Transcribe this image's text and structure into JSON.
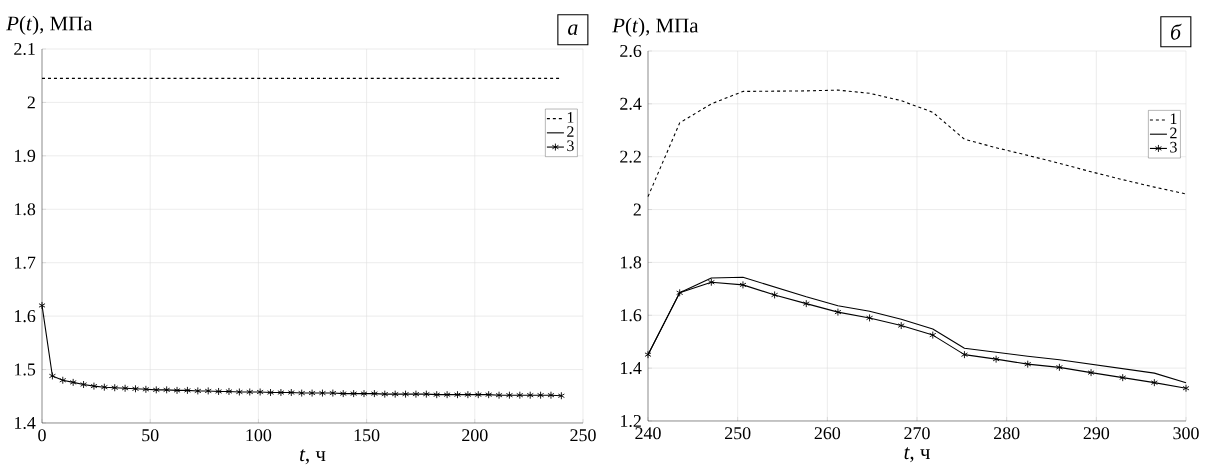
{
  "chart_data": [
    {
      "type": "line",
      "xlabel": "*t*, ч",
      "ylabel": "*P*(*t*), МПа",
      "annotations": [
        "*а*"
      ],
      "xlim": [
        0,
        250
      ],
      "ylim": [
        1.4,
        2.1
      ],
      "xticks": [
        0,
        50,
        100,
        150,
        200,
        250
      ],
      "yticks": [
        1.4,
        1.5,
        1.6,
        1.7,
        1.8,
        1.9,
        2,
        2.1
      ],
      "grid": true,
      "legend": "top right",
      "series": [
        {
          "name": "1",
          "color": "#000000",
          "line_style": "dashed",
          "marker": "none",
          "x": [
            0,
            240
          ],
          "values": [
            2.045,
            2.045
          ]
        },
        {
          "name": "2",
          "color": "#000000",
          "line_style": "solid",
          "marker": "none"
        },
        {
          "name": "3",
          "color": "#000000",
          "line_style": "solid",
          "marker": "cross",
          "x": [
            0,
            4.8,
            9.6,
            14.4,
            19.2,
            24,
            28.8,
            33.6,
            38.4,
            43.2,
            48,
            52.8,
            57.6,
            62.4,
            67.2,
            72,
            76.8,
            81.6,
            86.4,
            91.2,
            96,
            100.8,
            105.6,
            110.4,
            115.2,
            120,
            124.8,
            129.6,
            134.4,
            139.2,
            144,
            148.8,
            153.6,
            158.4,
            163.2,
            168,
            172.8,
            177.6,
            182.4,
            187.2,
            192,
            196.8,
            201.6,
            206.4,
            211.2,
            216,
            220.8,
            225.6,
            230.4,
            235.2,
            240
          ],
          "values": [
            1.62,
            1.488,
            1.48,
            1.476,
            1.472,
            1.469,
            1.467,
            1.466,
            1.465,
            1.464,
            1.463,
            1.462,
            1.462,
            1.461,
            1.461,
            1.46,
            1.46,
            1.459,
            1.459,
            1.458,
            1.458,
            1.458,
            1.457,
            1.457,
            1.457,
            1.456,
            1.456,
            1.456,
            1.456,
            1.455,
            1.455,
            1.455,
            1.455,
            1.454,
            1.454,
            1.454,
            1.454,
            1.454,
            1.453,
            1.453,
            1.453,
            1.453,
            1.453,
            1.453,
            1.452,
            1.452,
            1.452,
            1.452,
            1.452,
            1.452,
            1.451
          ]
        }
      ]
    },
    {
      "type": "line",
      "xlabel": "*t*, ч",
      "ylabel": "*P*(*t*), МПа",
      "annotations": [
        "*б*"
      ],
      "xlim": [
        240,
        300
      ],
      "ylim": [
        1.2,
        2.6
      ],
      "xticks": [
        240,
        250,
        260,
        270,
        280,
        290,
        300
      ],
      "yticks": [
        1.2,
        1.4,
        1.6,
        1.8,
        2,
        2.2,
        2.4,
        2.6
      ],
      "grid": true,
      "legend": "top right",
      "series": [
        {
          "name": "1",
          "color": "#000000",
          "line_style": "dashed",
          "marker": "none",
          "x": [
            240,
            243.53,
            247.06,
            250.59,
            254.12,
            257.65,
            261.18,
            264.71,
            268.24,
            271.76,
            275.29,
            278.82,
            282.35,
            285.88,
            289.41,
            292.94,
            296.47,
            300
          ],
          "values": [
            2.049,
            2.328,
            2.4,
            2.447,
            2.448,
            2.449,
            2.452,
            2.44,
            2.412,
            2.368,
            2.266,
            2.234,
            2.205,
            2.175,
            2.143,
            2.113,
            2.085,
            2.059
          ]
        },
        {
          "name": "2",
          "color": "#000000",
          "line_style": "solid",
          "marker": "none",
          "x": [
            240,
            243.53,
            247.06,
            250.59,
            254.12,
            257.65,
            261.18,
            264.71,
            268.24,
            271.76,
            275.29,
            278.82,
            282.35,
            285.88,
            289.41,
            292.94,
            296.47,
            300
          ],
          "values": [
            1.451,
            1.685,
            1.741,
            1.744,
            1.707,
            1.67,
            1.636,
            1.615,
            1.585,
            1.548,
            1.475,
            1.46,
            1.445,
            1.432,
            1.415,
            1.398,
            1.381,
            1.345
          ]
        },
        {
          "name": "3",
          "color": "#000000",
          "line_style": "solid",
          "marker": "cross",
          "x": [
            240,
            243.53,
            247.06,
            250.59,
            254.12,
            257.65,
            261.18,
            264.71,
            268.24,
            271.76,
            275.29,
            278.82,
            282.35,
            285.88,
            289.41,
            292.94,
            296.47,
            300
          ],
          "values": [
            1.451,
            1.685,
            1.725,
            1.715,
            1.677,
            1.644,
            1.612,
            1.59,
            1.561,
            1.525,
            1.451,
            1.434,
            1.415,
            1.403,
            1.383,
            1.364,
            1.345,
            1.324
          ]
        }
      ]
    }
  ]
}
